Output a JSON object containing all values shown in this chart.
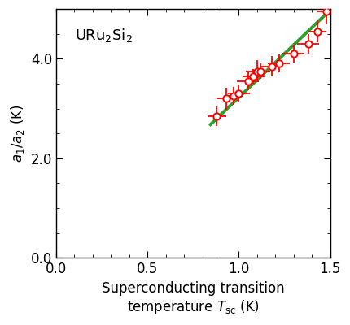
{
  "title": "URu$_2$Si$_2$",
  "ylabel": "$a_1/a_2$ (K)",
  "xlim": [
    0.0,
    1.5
  ],
  "ylim": [
    0.0,
    5.0
  ],
  "xticks": [
    0.0,
    0.5,
    1.0,
    1.5
  ],
  "yticks": [
    0.0,
    2.0,
    4.0
  ],
  "data_x": [
    0.88,
    0.93,
    0.97,
    1.0,
    1.05,
    1.08,
    1.1,
    1.12,
    1.18,
    1.22,
    1.3,
    1.38,
    1.43,
    1.48
  ],
  "data_y": [
    2.85,
    3.2,
    3.25,
    3.3,
    3.55,
    3.65,
    3.75,
    3.75,
    3.85,
    3.9,
    4.1,
    4.3,
    4.55,
    4.95
  ],
  "xerr": [
    0.05,
    0.05,
    0.05,
    0.06,
    0.06,
    0.06,
    0.06,
    0.05,
    0.06,
    0.06,
    0.06,
    0.06,
    0.05,
    0.05
  ],
  "yerr": [
    0.2,
    0.22,
    0.18,
    0.18,
    0.18,
    0.15,
    0.22,
    0.15,
    0.2,
    0.18,
    0.18,
    0.2,
    0.22,
    0.25
  ],
  "fit_x": [
    0.845,
    1.5
  ],
  "fit_y": [
    2.68,
    4.98
  ],
  "marker_color": "#ff0000",
  "line_color": "#2ca02c",
  "background_color": "#ffffff",
  "marker_size": 6,
  "line_width": 2.8,
  "elinewidth": 1.3,
  "capsize": 0
}
